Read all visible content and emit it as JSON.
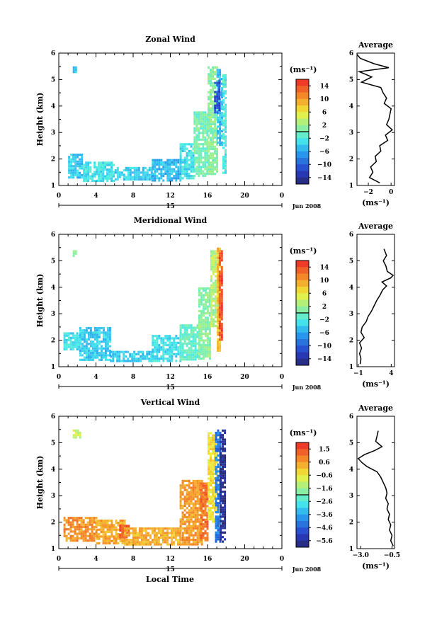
{
  "figure": {
    "xlabel_shared": "Local Time",
    "date_label": "Jun 2008",
    "day_label": "15"
  },
  "chart_data": [
    {
      "id": "zonal",
      "type": "heatmap",
      "title": "Zonal Wind",
      "ylabel": "Height (km)",
      "xticks": [
        "0",
        "4",
        "8",
        "12",
        "16",
        "20",
        "0"
      ],
      "yticks": [
        "1",
        "2",
        "3",
        "4",
        "5",
        "6"
      ],
      "xlim": [
        0,
        24
      ],
      "ylim": [
        1,
        6
      ],
      "colorbar": {
        "unit": "(ms⁻¹)",
        "ticks": [
          "14",
          "10",
          "6",
          "2",
          "−2",
          "−6",
          "−10",
          "−14"
        ],
        "range": [
          -16,
          16
        ]
      },
      "average": {
        "title": "Average",
        "xlabel": "(ms⁻¹)",
        "xticks": [
          "−2",
          "0"
        ],
        "xlim": [
          -3,
          0.3
        ],
        "profile": [
          [
            -1.0,
            1.1
          ],
          [
            -1.9,
            1.3
          ],
          [
            -1.6,
            1.5
          ],
          [
            -1.8,
            1.7
          ],
          [
            -1.3,
            1.9
          ],
          [
            -1.4,
            2.1
          ],
          [
            -0.9,
            2.3
          ],
          [
            -1.0,
            2.5
          ],
          [
            -0.3,
            2.7
          ],
          [
            -0.5,
            2.9
          ],
          [
            0.1,
            3.1
          ],
          [
            -0.4,
            3.3
          ],
          [
            -0.2,
            3.5
          ],
          [
            -0.1,
            3.7
          ],
          [
            0.0,
            3.9
          ],
          [
            -0.6,
            4.1
          ],
          [
            -0.4,
            4.3
          ],
          [
            -0.7,
            4.5
          ],
          [
            -0.9,
            4.7
          ],
          [
            -2.6,
            4.9
          ],
          [
            -1.7,
            5.1
          ],
          [
            -2.8,
            5.3
          ],
          [
            -0.2,
            5.45
          ],
          [
            -1.5,
            5.6
          ],
          [
            -2.7,
            5.8
          ],
          [
            -3.0,
            5.95
          ]
        ]
      },
      "field": [
        {
          "x": [
            1.0,
            2.6
          ],
          "y": [
            1.3,
            2.2
          ],
          "v": -4
        },
        {
          "x": [
            2.6,
            6.0
          ],
          "y": [
            1.2,
            1.9
          ],
          "v": -3
        },
        {
          "x": [
            6.0,
            10.0
          ],
          "y": [
            1.2,
            1.7
          ],
          "v": -4
        },
        {
          "x": [
            10.0,
            13.0
          ],
          "y": [
            1.2,
            2.0
          ],
          "v": -5
        },
        {
          "x": [
            13.0,
            14.5
          ],
          "y": [
            1.3,
            2.6
          ],
          "v": -3
        },
        {
          "x": [
            14.5,
            16.0
          ],
          "y": [
            1.4,
            3.8
          ],
          "v": 0
        },
        {
          "x": [
            16.0,
            17.0
          ],
          "y": [
            1.4,
            5.5
          ],
          "v": 1
        },
        {
          "x": [
            17.0,
            17.6
          ],
          "y": [
            2.5,
            5.4
          ],
          "v": -5
        },
        {
          "x": [
            16.7,
            17.3
          ],
          "y": [
            3.8,
            5.0
          ],
          "v": -11
        },
        {
          "x": [
            17.6,
            17.9
          ],
          "y": [
            1.5,
            5.2
          ],
          "v": -2
        },
        {
          "x": [
            1.5,
            1.8
          ],
          "y": [
            5.3,
            5.5
          ],
          "v": -4
        }
      ]
    },
    {
      "id": "meridional",
      "type": "heatmap",
      "title": "Meridional Wind",
      "ylabel": "Height (km)",
      "xticks": [
        "0",
        "4",
        "8",
        "12",
        "16",
        "20",
        "0"
      ],
      "yticks": [
        "1",
        "2",
        "3",
        "4",
        "5",
        "6"
      ],
      "xlim": [
        0,
        24
      ],
      "ylim": [
        1,
        6
      ],
      "colorbar": {
        "unit": "(ms⁻¹)",
        "ticks": [
          "14",
          "10",
          "6",
          "2",
          "−2",
          "−6",
          "−10",
          "−14"
        ],
        "range": [
          -16,
          16
        ]
      },
      "average": {
        "title": "Average",
        "xlabel": "(ms⁻¹)",
        "xticks": [
          "−1",
          "4"
        ],
        "xlim": [
          -1.2,
          4.5
        ],
        "profile": [
          [
            -0.7,
            1.1
          ],
          [
            -0.6,
            1.3
          ],
          [
            -0.8,
            1.5
          ],
          [
            -0.5,
            1.7
          ],
          [
            -0.8,
            1.9
          ],
          [
            -0.1,
            2.1
          ],
          [
            -0.6,
            2.3
          ],
          [
            -0.4,
            2.5
          ],
          [
            0.2,
            2.7
          ],
          [
            0.5,
            2.9
          ],
          [
            1.0,
            3.1
          ],
          [
            1.4,
            3.3
          ],
          [
            1.8,
            3.5
          ],
          [
            2.3,
            3.7
          ],
          [
            2.7,
            3.9
          ],
          [
            3.3,
            4.05
          ],
          [
            2.6,
            4.2
          ],
          [
            3.9,
            4.35
          ],
          [
            4.3,
            4.45
          ],
          [
            3.4,
            4.6
          ],
          [
            3.2,
            4.8
          ],
          [
            2.8,
            5.0
          ],
          [
            3.3,
            5.2
          ],
          [
            2.9,
            5.45
          ]
        ]
      },
      "field": [
        {
          "x": [
            0.5,
            2.2
          ],
          "y": [
            1.7,
            2.3
          ],
          "v": -3
        },
        {
          "x": [
            2.2,
            5.5
          ],
          "y": [
            1.3,
            2.5
          ],
          "v": -4
        },
        {
          "x": [
            5.5,
            10.0
          ],
          "y": [
            1.2,
            1.6
          ],
          "v": -4
        },
        {
          "x": [
            10.0,
            13.0
          ],
          "y": [
            1.2,
            2.2
          ],
          "v": -3
        },
        {
          "x": [
            13.0,
            15.0
          ],
          "y": [
            1.3,
            2.6
          ],
          "v": -1
        },
        {
          "x": [
            15.0,
            16.3
          ],
          "y": [
            1.3,
            4.0
          ],
          "v": 1
        },
        {
          "x": [
            16.3,
            17.0
          ],
          "y": [
            2.5,
            5.4
          ],
          "v": 3
        },
        {
          "x": [
            17.0,
            17.4
          ],
          "y": [
            1.6,
            5.5
          ],
          "v": 8
        },
        {
          "x": [
            17.2,
            17.5
          ],
          "y": [
            2.0,
            5.4
          ],
          "v": 14
        },
        {
          "x": [
            1.5,
            1.8
          ],
          "y": [
            5.2,
            5.4
          ],
          "v": 2
        }
      ]
    },
    {
      "id": "vertical",
      "type": "heatmap",
      "title": "Vertical Wind",
      "ylabel": "Height (km)",
      "xticks": [
        "0",
        "4",
        "8",
        "12",
        "16",
        "20",
        "0"
      ],
      "yticks": [
        "1",
        "2",
        "3",
        "4",
        "5",
        "6"
      ],
      "xlim": [
        0,
        24
      ],
      "ylim": [
        1,
        6
      ],
      "colorbar": {
        "unit": "(ms⁻¹)",
        "ticks": [
          "1.5",
          "0.6",
          "−0.6",
          "−1.6",
          "−2.6",
          "−3.6",
          "−4.6",
          "−5.6"
        ],
        "range": [
          -6.1,
          2.0
        ]
      },
      "average": {
        "title": "Average",
        "xlabel": "(ms⁻¹)",
        "xticks": [
          "−3.0",
          "−0.5"
        ],
        "xlim": [
          -3.3,
          -0.3
        ],
        "profile": [
          [
            -0.4,
            1.1
          ],
          [
            -0.6,
            1.3
          ],
          [
            -0.5,
            1.5
          ],
          [
            -0.7,
            1.7
          ],
          [
            -0.6,
            1.9
          ],
          [
            -0.8,
            2.1
          ],
          [
            -0.7,
            2.3
          ],
          [
            -0.9,
            2.5
          ],
          [
            -0.8,
            2.7
          ],
          [
            -1.0,
            2.9
          ],
          [
            -0.9,
            3.1
          ],
          [
            -1.0,
            3.3
          ],
          [
            -1.2,
            3.5
          ],
          [
            -1.4,
            3.7
          ],
          [
            -1.7,
            3.9
          ],
          [
            -2.5,
            4.1
          ],
          [
            -2.9,
            4.25
          ],
          [
            -3.2,
            4.4
          ],
          [
            -2.7,
            4.55
          ],
          [
            -1.9,
            4.7
          ],
          [
            -1.3,
            4.85
          ],
          [
            -1.8,
            5.05
          ],
          [
            -1.7,
            5.25
          ],
          [
            -1.6,
            5.45
          ]
        ]
      },
      "field": [
        {
          "x": [
            0.5,
            4.0
          ],
          "y": [
            1.3,
            2.2
          ],
          "v": 0.6
        },
        {
          "x": [
            4.0,
            7.0
          ],
          "y": [
            1.2,
            2.1
          ],
          "v": 0.3
        },
        {
          "x": [
            6.5,
            7.5
          ],
          "y": [
            1.4,
            1.9
          ],
          "v": 1.3
        },
        {
          "x": [
            7.0,
            13.0
          ],
          "y": [
            1.2,
            1.8
          ],
          "v": 0.2
        },
        {
          "x": [
            13.0,
            15.5
          ],
          "y": [
            1.2,
            3.6
          ],
          "v": 0.5
        },
        {
          "x": [
            15.2,
            16.0
          ],
          "y": [
            1.3,
            3.5
          ],
          "v": 1.0
        },
        {
          "x": [
            16.0,
            17.0
          ],
          "y": [
            2.0,
            5.4
          ],
          "v": -0.4
        },
        {
          "x": [
            16.8,
            17.3
          ],
          "y": [
            1.3,
            5.5
          ],
          "v": -4.2
        },
        {
          "x": [
            17.3,
            17.9
          ],
          "y": [
            1.3,
            5.5
          ],
          "v": -5.8
        },
        {
          "x": [
            1.5,
            2.3
          ],
          "y": [
            5.2,
            5.5
          ],
          "v": -1.0
        }
      ]
    }
  ]
}
